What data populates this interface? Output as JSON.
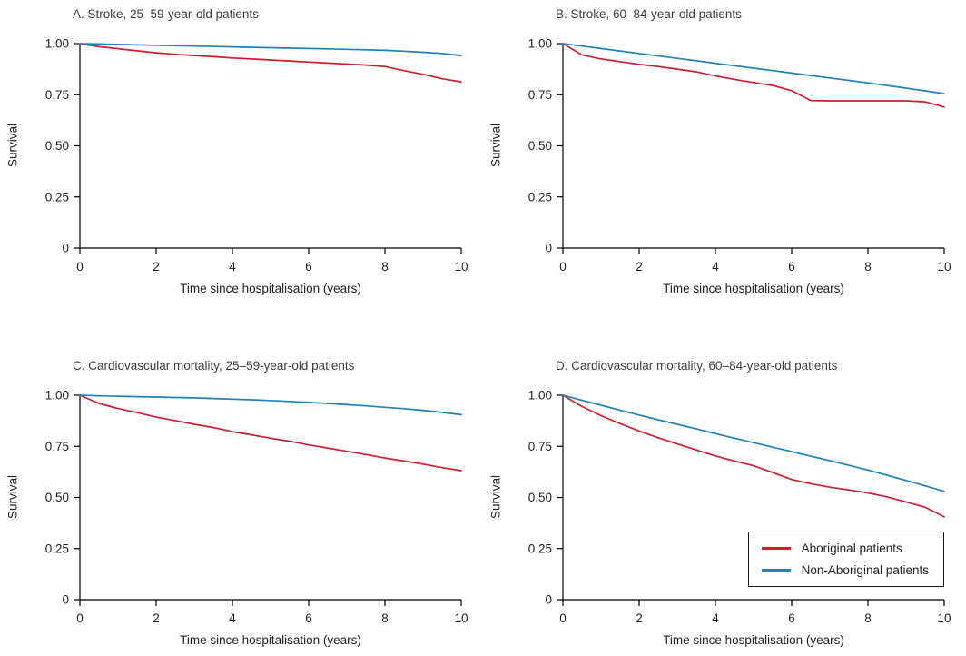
{
  "figure": {
    "background": "#ffffff",
    "text_color": "#222222",
    "axis_color": "#000000"
  },
  "legend": {
    "border_color": "#1a1a1a",
    "entries": [
      {
        "label": "Aboriginal patients",
        "color": "#cb2030"
      },
      {
        "label": "Non-Aboriginal patients",
        "color": "#2182b4"
      }
    ]
  },
  "chart_data": [
    {
      "type": "line",
      "title": "A. Stroke, 25–59-year-old patients",
      "xlabel": "Time since hospitalisation (years)",
      "ylabel": "Survival",
      "xlim": [
        0,
        10
      ],
      "ylim": [
        0,
        1.0
      ],
      "xticks": [
        0,
        2,
        4,
        6,
        8,
        10
      ],
      "yticks": [
        0,
        0.25,
        0.5,
        0.75,
        1.0
      ],
      "ytick_labels": [
        "0",
        "0.25",
        "0.50",
        "0.75",
        "1.00"
      ],
      "grid": false,
      "legend": false,
      "x": [
        0,
        0.5,
        1,
        1.5,
        2,
        2.5,
        3,
        3.5,
        4,
        4.5,
        5,
        5.5,
        6,
        6.5,
        7,
        7.5,
        8,
        8.5,
        9,
        9.5,
        10
      ],
      "series": [
        {
          "name": "Aboriginal patients",
          "color": "#cb2030",
          "values": [
            1.0,
            0.985,
            0.975,
            0.965,
            0.955,
            0.948,
            0.942,
            0.936,
            0.93,
            0.925,
            0.92,
            0.915,
            0.91,
            0.905,
            0.9,
            0.895,
            0.888,
            0.868,
            0.85,
            0.828,
            0.813
          ]
        },
        {
          "name": "Non-Aboriginal patients",
          "color": "#2182b4",
          "values": [
            1.0,
            0.998,
            0.996,
            0.994,
            0.992,
            0.99,
            0.988,
            0.986,
            0.984,
            0.982,
            0.98,
            0.978,
            0.976,
            0.974,
            0.972,
            0.97,
            0.967,
            0.963,
            0.958,
            0.952,
            0.942
          ]
        }
      ]
    },
    {
      "type": "line",
      "title": "B. Stroke, 60–84-year-old patients",
      "xlabel": "Time since hospitalisation (years)",
      "ylabel": "Survival",
      "xlim": [
        0,
        10
      ],
      "ylim": [
        0,
        1.0
      ],
      "xticks": [
        0,
        2,
        4,
        6,
        8,
        10
      ],
      "yticks": [
        0,
        0.25,
        0.5,
        0.75,
        1.0
      ],
      "ytick_labels": [
        "0",
        "0.25",
        "0.50",
        "0.75",
        "1.00"
      ],
      "grid": false,
      "legend": false,
      "x": [
        0,
        0.5,
        1,
        1.5,
        2,
        2.5,
        3,
        3.5,
        4,
        4.5,
        5,
        5.5,
        6,
        6.5,
        7,
        7.5,
        8,
        8.5,
        9,
        9.5,
        10
      ],
      "series": [
        {
          "name": "Aboriginal patients",
          "color": "#cb2030",
          "values": [
            1.0,
            0.945,
            0.925,
            0.912,
            0.898,
            0.888,
            0.875,
            0.862,
            0.842,
            0.825,
            0.81,
            0.795,
            0.77,
            0.722,
            0.72,
            0.72,
            0.72,
            0.72,
            0.72,
            0.715,
            0.69
          ]
        },
        {
          "name": "Non-Aboriginal patients",
          "color": "#2182b4",
          "values": [
            1.0,
            0.988,
            0.976,
            0.964,
            0.952,
            0.94,
            0.928,
            0.916,
            0.904,
            0.892,
            0.88,
            0.868,
            0.856,
            0.844,
            0.832,
            0.82,
            0.808,
            0.795,
            0.782,
            0.769,
            0.755
          ]
        }
      ]
    },
    {
      "type": "line",
      "title": "C. Cardiovascular mortality, 25–59-year-old patients",
      "xlabel": "Time since hospitalisation (years)",
      "ylabel": "Survival",
      "xlim": [
        0,
        10
      ],
      "ylim": [
        0,
        1.0
      ],
      "xticks": [
        0,
        2,
        4,
        6,
        8,
        10
      ],
      "yticks": [
        0,
        0.25,
        0.5,
        0.75,
        1.0
      ],
      "ytick_labels": [
        "0",
        "0.25",
        "0.50",
        "0.75",
        "1.00"
      ],
      "grid": false,
      "legend": false,
      "x": [
        0,
        0.5,
        1,
        1.5,
        2,
        2.5,
        3,
        3.5,
        4,
        4.5,
        5,
        5.5,
        6,
        6.5,
        7,
        7.5,
        8,
        8.5,
        9,
        9.5,
        10
      ],
      "series": [
        {
          "name": "Aboriginal patients",
          "color": "#cb2030",
          "values": [
            1.0,
            0.96,
            0.935,
            0.915,
            0.893,
            0.876,
            0.858,
            0.842,
            0.822,
            0.806,
            0.79,
            0.775,
            0.757,
            0.742,
            0.726,
            0.71,
            0.693,
            0.678,
            0.663,
            0.646,
            0.631
          ]
        },
        {
          "name": "Non-Aboriginal patients",
          "color": "#2182b4",
          "values": [
            1.0,
            0.997,
            0.995,
            0.993,
            0.991,
            0.989,
            0.987,
            0.984,
            0.981,
            0.978,
            0.974,
            0.97,
            0.965,
            0.96,
            0.954,
            0.948,
            0.941,
            0.934,
            0.926,
            0.916,
            0.905
          ]
        }
      ]
    },
    {
      "type": "line",
      "title": "D. Cardiovascular mortality, 60–84-year-old patients",
      "xlabel": "Time since hospitalisation (years)",
      "ylabel": "Survival",
      "xlim": [
        0,
        10
      ],
      "ylim": [
        0,
        1.0
      ],
      "xticks": [
        0,
        2,
        4,
        6,
        8,
        10
      ],
      "yticks": [
        0,
        0.25,
        0.5,
        0.75,
        1.0
      ],
      "ytick_labels": [
        "0",
        "0.25",
        "0.50",
        "0.75",
        "1.00"
      ],
      "grid": false,
      "legend": true,
      "legend_position": "bottom-right",
      "x": [
        0,
        0.5,
        1,
        1.5,
        2,
        2.5,
        3,
        3.5,
        4,
        4.5,
        5,
        5.5,
        6,
        6.5,
        7,
        7.5,
        8,
        8.5,
        9,
        9.5,
        10
      ],
      "series": [
        {
          "name": "Aboriginal patients",
          "color": "#cb2030",
          "values": [
            1.0,
            0.945,
            0.9,
            0.862,
            0.825,
            0.792,
            0.762,
            0.732,
            0.703,
            0.678,
            0.655,
            0.622,
            0.588,
            0.567,
            0.55,
            0.537,
            0.522,
            0.503,
            0.478,
            0.452,
            0.405
          ]
        },
        {
          "name": "Non-Aboriginal patients",
          "color": "#2182b4",
          "values": [
            1.0,
            0.975,
            0.951,
            0.927,
            0.903,
            0.88,
            0.858,
            0.835,
            0.812,
            0.79,
            0.768,
            0.746,
            0.724,
            0.702,
            0.68,
            0.657,
            0.634,
            0.609,
            0.583,
            0.557,
            0.53
          ]
        }
      ]
    }
  ]
}
